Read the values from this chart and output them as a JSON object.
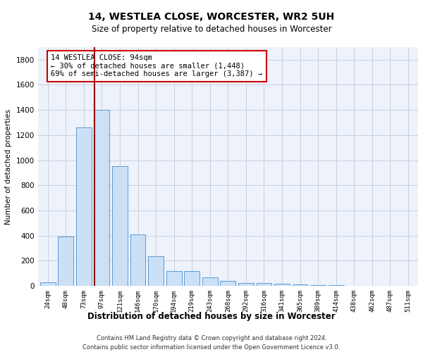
{
  "title1": "14, WESTLEA CLOSE, WORCESTER, WR2 5UH",
  "title2": "Size of property relative to detached houses in Worcester",
  "xlabel": "Distribution of detached houses by size in Worcester",
  "ylabel": "Number of detached properties",
  "bar_color": "#cce0f5",
  "bar_edge_color": "#5b9bd5",
  "grid_color": "#c8d0e0",
  "background_color": "#ffffff",
  "plot_bg_color": "#edf2fb",
  "categories": [
    "24sqm",
    "48sqm",
    "73sqm",
    "97sqm",
    "121sqm",
    "146sqm",
    "170sqm",
    "194sqm",
    "219sqm",
    "243sqm",
    "268sqm",
    "292sqm",
    "316sqm",
    "341sqm",
    "365sqm",
    "389sqm",
    "414sqm",
    "438sqm",
    "462sqm",
    "487sqm",
    "511sqm"
  ],
  "values": [
    25,
    390,
    1260,
    1400,
    950,
    410,
    235,
    120,
    120,
    65,
    40,
    20,
    20,
    15,
    10,
    5,
    3,
    2,
    1,
    1,
    1
  ],
  "vline_x_index": 3,
  "vline_color": "#990000",
  "annotation_box_color": "#cc0000",
  "annotation_line1": "14 WESTLEA CLOSE: 94sqm",
  "annotation_line2": "← 30% of detached houses are smaller (1,448)",
  "annotation_line3": "69% of semi-detached houses are larger (3,387) →",
  "footer1": "Contains HM Land Registry data © Crown copyright and database right 2024.",
  "footer2": "Contains public sector information licensed under the Open Government Licence v3.0.",
  "ylim": [
    0,
    1900
  ],
  "yticks": [
    0,
    200,
    400,
    600,
    800,
    1000,
    1200,
    1400,
    1600,
    1800
  ]
}
